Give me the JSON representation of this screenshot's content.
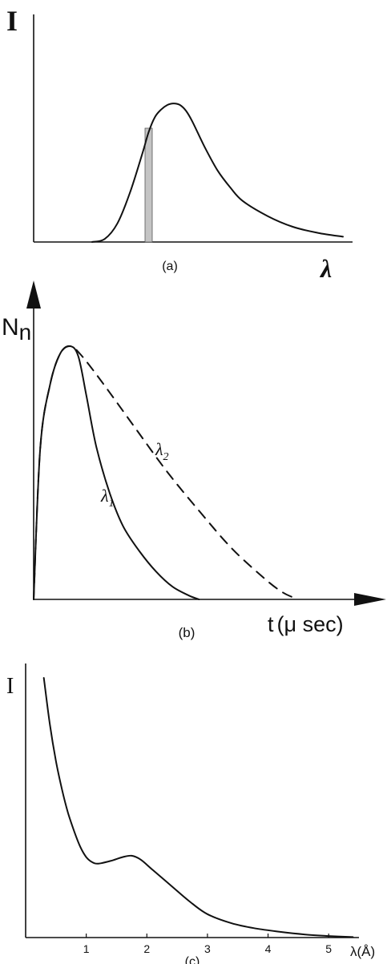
{
  "chart_data": [
    {
      "type": "line",
      "panel_label": "(a)",
      "ylabel": "I",
      "xlabel": "λ",
      "shaded_band": true,
      "series": [
        {
          "values": [
            [
              0.0,
              0.0
            ],
            [
              0.05,
              0.02
            ],
            [
              0.1,
              0.12
            ],
            [
              0.15,
              0.32
            ],
            [
              0.2,
              0.58
            ],
            [
              0.225,
              0.72
            ],
            [
              0.25,
              0.82
            ],
            [
              0.275,
              0.87
            ],
            [
              0.3,
              0.9
            ],
            [
              0.325,
              0.91
            ],
            [
              0.35,
              0.9
            ],
            [
              0.375,
              0.86
            ],
            [
              0.4,
              0.79
            ],
            [
              0.45,
              0.62
            ],
            [
              0.5,
              0.47
            ],
            [
              0.55,
              0.36
            ],
            [
              0.6,
              0.27
            ],
            [
              0.7,
              0.17
            ],
            [
              0.8,
              0.1
            ],
            [
              0.9,
              0.06
            ],
            [
              1.0,
              0.035
            ]
          ]
        }
      ]
    },
    {
      "type": "line",
      "panel_label": "(b)",
      "ylabel": "N",
      "ylabel_sub": "n",
      "xlabel": "t",
      "xlabel_unit": "(μ sec)",
      "series": [
        {
          "name": "λ",
          "name_sub": "1",
          "values": [
            [
              0.0,
              0.0
            ],
            [
              0.02,
              0.6
            ],
            [
              0.05,
              0.85
            ],
            [
              0.08,
              0.97
            ],
            [
              0.11,
              1.0
            ],
            [
              0.135,
              0.96
            ],
            [
              0.16,
              0.8
            ],
            [
              0.19,
              0.6
            ],
            [
              0.23,
              0.42
            ],
            [
              0.27,
              0.29
            ],
            [
              0.32,
              0.19
            ],
            [
              0.37,
              0.11
            ],
            [
              0.42,
              0.05
            ],
            [
              0.47,
              0.015
            ],
            [
              0.5,
              0.0
            ]
          ]
        },
        {
          "name": "λ",
          "name_sub": "2",
          "style": "dashed",
          "values": [
            [
              0.0,
              0.0
            ],
            [
              0.02,
              0.6
            ],
            [
              0.05,
              0.85
            ],
            [
              0.08,
              0.97
            ],
            [
              0.11,
              1.0
            ],
            [
              0.14,
              0.97
            ],
            [
              0.2,
              0.87
            ],
            [
              0.3,
              0.69
            ],
            [
              0.4,
              0.51
            ],
            [
              0.5,
              0.35
            ],
            [
              0.6,
              0.2
            ],
            [
              0.7,
              0.08
            ],
            [
              0.75,
              0.03
            ],
            [
              0.78,
              0.01
            ]
          ]
        }
      ]
    },
    {
      "type": "line",
      "panel_label": "(c)",
      "ylabel": "I",
      "xlabel": "λ(Å)",
      "xticks": [
        "1",
        "2",
        "3",
        "4",
        "5"
      ],
      "xlim": [
        0,
        5.5
      ],
      "series": [
        {
          "values": [
            [
              0.3,
              1.0
            ],
            [
              0.4,
              0.82
            ],
            [
              0.5,
              0.68
            ],
            [
              0.6,
              0.57
            ],
            [
              0.7,
              0.48
            ],
            [
              0.8,
              0.41
            ],
            [
              0.9,
              0.35
            ],
            [
              1.0,
              0.31
            ],
            [
              1.1,
              0.29
            ],
            [
              1.2,
              0.285
            ],
            [
              1.4,
              0.295
            ],
            [
              1.6,
              0.31
            ],
            [
              1.75,
              0.315
            ],
            [
              1.9,
              0.3
            ],
            [
              2.1,
              0.26
            ],
            [
              2.4,
              0.2
            ],
            [
              2.7,
              0.14
            ],
            [
              3.0,
              0.09
            ],
            [
              3.4,
              0.055
            ],
            [
              3.8,
              0.035
            ],
            [
              4.2,
              0.022
            ],
            [
              4.6,
              0.012
            ],
            [
              5.0,
              0.006
            ],
            [
              5.4,
              0.002
            ]
          ]
        }
      ]
    }
  ]
}
